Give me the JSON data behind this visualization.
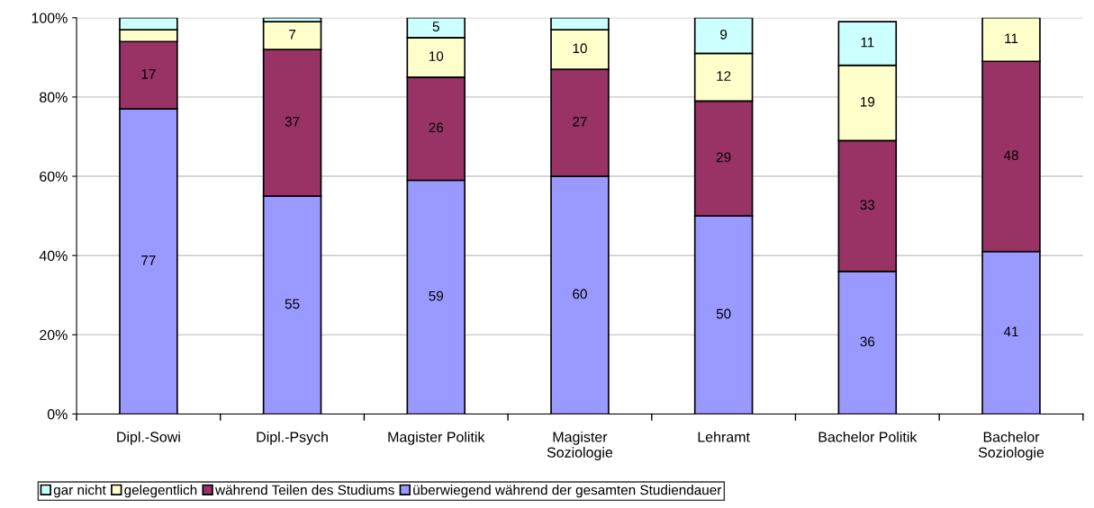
{
  "chart_data": {
    "type": "bar",
    "stacked": true,
    "categories": [
      "Dipl.-Sowi",
      "Dipl.-Psych",
      "Magister Politik",
      "Magister\nSoziologie",
      "Lehramt",
      "Bachelor Politik",
      "Bachelor\nSoziologie"
    ],
    "series": [
      {
        "name": "überwiegend während der gesamten Studiendauer",
        "color": "#9999ff",
        "values": [
          77,
          55,
          59,
          60,
          50,
          36,
          41
        ],
        "value_labels": [
          "77",
          "55",
          "59",
          "60",
          "50",
          "36",
          "41"
        ]
      },
      {
        "name": "während Teilen des Studiums",
        "color": "#993366",
        "values": [
          17,
          37,
          26,
          27,
          29,
          33,
          48
        ],
        "value_labels": [
          "17",
          "37",
          "26",
          "27",
          "29",
          "33",
          "48"
        ]
      },
      {
        "name": "gelegentlich",
        "color": "#ffffcc",
        "values": [
          3,
          7,
          10,
          10,
          12,
          19,
          11
        ],
        "value_labels": [
          null,
          "7",
          "10",
          "10",
          "12",
          "19",
          "11"
        ]
      },
      {
        "name": "gar nicht",
        "color": "#ccffff",
        "values": [
          3,
          1,
          5,
          3,
          9,
          11,
          null
        ],
        "value_labels": [
          null,
          null,
          "5",
          null,
          "9",
          "11",
          null
        ]
      }
    ],
    "ylim": [
      0,
      100
    ],
    "yticks": [
      {
        "value": 0,
        "label": "0%"
      },
      {
        "value": 20,
        "label": "20%"
      },
      {
        "value": 40,
        "label": "40%"
      },
      {
        "value": 60,
        "label": "60%"
      },
      {
        "value": 80,
        "label": "80%"
      },
      {
        "value": 100,
        "label": "100%"
      }
    ],
    "grid": "y",
    "legend": "bottom"
  }
}
